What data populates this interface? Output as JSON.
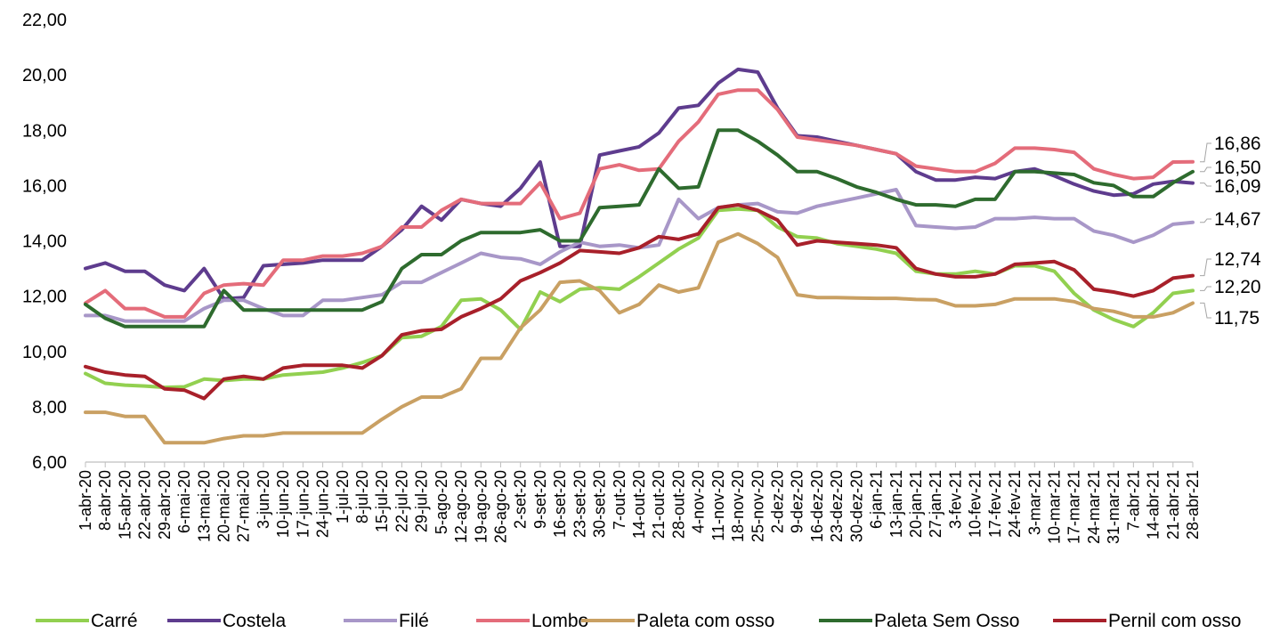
{
  "chart_data": {
    "type": "line",
    "title": "",
    "xlabel": "",
    "ylabel": "",
    "ylim": [
      6,
      22
    ],
    "yticks": [
      "6,00",
      "8,00",
      "10,00",
      "12,00",
      "14,00",
      "16,00",
      "18,00",
      "20,00",
      "22,00"
    ],
    "grid": false,
    "legend_position": "bottom",
    "x": [
      "1-abr-20",
      "8-abr-20",
      "15-abr-20",
      "22-abr-20",
      "29-abr-20",
      "6-mai-20",
      "13-mai-20",
      "20-mai-20",
      "27-mai-20",
      "3-jun-20",
      "10-jun-20",
      "17-jun-20",
      "24-jun-20",
      "1-jul-20",
      "8-jul-20",
      "15-jul-20",
      "22-jul-20",
      "29-jul-20",
      "5-ago-20",
      "12-ago-20",
      "19-ago-20",
      "26-ago-20",
      "2-set-20",
      "9-set-20",
      "16-set-20",
      "23-set-20",
      "30-set-20",
      "7-out-20",
      "14-out-20",
      "21-out-20",
      "28-out-20",
      "4-nov-20",
      "11-nov-20",
      "18-nov-20",
      "25-nov-20",
      "2-dez-20",
      "9-dez-20",
      "16-dez-20",
      "23-dez-20",
      "30-dez-20",
      "6-jan-21",
      "13-jan-21",
      "20-jan-21",
      "27-jan-21",
      "3-fev-21",
      "10-fev-21",
      "17-fev-21",
      "24-fev-21",
      "3-mar-21",
      "10-mar-21",
      "17-mar-21",
      "24-mar-21",
      "31-mar-21",
      "7-abr-21",
      "14-abr-21",
      "21-abr-21",
      "28-abr-21"
    ],
    "series": [
      {
        "name": "Carré",
        "color": "#92d050",
        "values": [
          9.2,
          8.85,
          8.78,
          8.75,
          8.7,
          8.72,
          9.0,
          8.95,
          9.0,
          9.0,
          9.15,
          9.2,
          9.25,
          9.4,
          9.6,
          9.85,
          10.5,
          10.55,
          10.9,
          11.85,
          11.9,
          11.5,
          10.8,
          12.15,
          11.8,
          12.25,
          12.3,
          12.25,
          12.7,
          13.2,
          13.7,
          14.1,
          15.1,
          15.15,
          15.1,
          14.5,
          14.15,
          14.1,
          13.9,
          13.8,
          13.7,
          13.55,
          12.9,
          12.8,
          12.8,
          12.9,
          12.8,
          13.1,
          13.1,
          12.9,
          12.1,
          11.5,
          11.15,
          10.9,
          11.4,
          12.1,
          12.2
        ]
      },
      {
        "name": "Costela",
        "color": "#5e3c8e",
        "values": [
          13.0,
          13.2,
          12.9,
          12.9,
          12.4,
          12.2,
          13.0,
          11.9,
          11.95,
          13.1,
          13.15,
          13.2,
          13.3,
          13.3,
          13.3,
          13.8,
          14.4,
          15.25,
          14.75,
          15.5,
          15.35,
          15.25,
          15.9,
          16.85,
          13.8,
          13.8,
          17.1,
          17.25,
          17.4,
          17.9,
          18.8,
          18.9,
          19.7,
          20.2,
          20.1,
          18.8,
          17.8,
          17.75,
          17.6,
          17.45,
          17.3,
          17.15,
          16.5,
          16.2,
          16.2,
          16.3,
          16.25,
          16.5,
          16.6,
          16.35,
          16.05,
          15.8,
          15.65,
          15.7,
          16.05,
          16.15,
          16.09
        ]
      },
      {
        "name": "Filé",
        "color": "#a897c8",
        "values": [
          11.3,
          11.3,
          11.1,
          11.1,
          11.1,
          11.1,
          11.55,
          11.85,
          11.85,
          11.55,
          11.3,
          11.3,
          11.85,
          11.85,
          11.95,
          12.05,
          12.5,
          12.5,
          12.85,
          13.2,
          13.55,
          13.4,
          13.35,
          13.15,
          13.6,
          13.95,
          13.8,
          13.85,
          13.75,
          13.85,
          15.5,
          14.8,
          15.2,
          15.3,
          15.35,
          15.05,
          15.0,
          15.25,
          15.4,
          15.55,
          15.7,
          15.85,
          14.55,
          14.5,
          14.45,
          14.5,
          14.8,
          14.8,
          14.85,
          14.8,
          14.8,
          14.35,
          14.2,
          13.95,
          14.2,
          14.6,
          14.67
        ]
      },
      {
        "name": "Lombo",
        "color": "#e46c7a",
        "values": [
          11.75,
          12.2,
          11.55,
          11.55,
          11.25,
          11.25,
          12.1,
          12.4,
          12.45,
          12.4,
          13.3,
          13.3,
          13.45,
          13.45,
          13.55,
          13.8,
          14.5,
          14.5,
          15.1,
          15.5,
          15.35,
          15.35,
          15.35,
          16.1,
          14.8,
          15.0,
          16.6,
          16.75,
          16.55,
          16.6,
          17.6,
          18.3,
          19.3,
          19.45,
          19.45,
          18.75,
          17.75,
          17.65,
          17.55,
          17.45,
          17.3,
          17.15,
          16.7,
          16.6,
          16.5,
          16.5,
          16.8,
          17.35,
          17.35,
          17.3,
          17.2,
          16.6,
          16.4,
          16.25,
          16.3,
          16.85,
          16.86
        ]
      },
      {
        "name": "Paleta com osso",
        "color": "#c9a063",
        "values": [
          7.8,
          7.8,
          7.65,
          7.65,
          6.7,
          6.7,
          6.7,
          6.85,
          6.95,
          6.95,
          7.05,
          7.05,
          7.05,
          7.05,
          7.05,
          7.55,
          8.0,
          8.35,
          8.35,
          8.65,
          9.75,
          9.75,
          10.85,
          11.5,
          12.5,
          12.55,
          12.2,
          11.4,
          11.7,
          12.4,
          12.15,
          12.3,
          13.95,
          14.25,
          13.9,
          13.4,
          12.05,
          11.95,
          11.95,
          11.93,
          11.92,
          11.92,
          11.88,
          11.87,
          11.65,
          11.65,
          11.7,
          11.9,
          11.9,
          11.9,
          11.8,
          11.55,
          11.45,
          11.25,
          11.25,
          11.4,
          11.75
        ]
      },
      {
        "name": "Paleta Sem Osso",
        "color": "#2e6b2e",
        "values": [
          11.7,
          11.2,
          10.9,
          10.9,
          10.9,
          10.9,
          10.9,
          12.2,
          11.5,
          11.5,
          11.5,
          11.5,
          11.5,
          11.5,
          11.5,
          11.8,
          13.0,
          13.5,
          13.5,
          14.0,
          14.3,
          14.3,
          14.3,
          14.4,
          14.0,
          14.0,
          15.2,
          15.25,
          15.3,
          16.6,
          15.9,
          15.95,
          18.0,
          18.0,
          17.6,
          17.1,
          16.5,
          16.5,
          16.25,
          15.95,
          15.75,
          15.5,
          15.3,
          15.3,
          15.25,
          15.5,
          15.5,
          16.5,
          16.5,
          16.45,
          16.4,
          16.1,
          16.0,
          15.6,
          15.6,
          16.1,
          16.5
        ]
      },
      {
        "name": "Pernil com osso",
        "color": "#a8202a",
        "values": [
          9.45,
          9.25,
          9.15,
          9.1,
          8.65,
          8.6,
          8.3,
          9.0,
          9.1,
          9.0,
          9.4,
          9.5,
          9.5,
          9.5,
          9.4,
          9.85,
          10.6,
          10.75,
          10.8,
          11.25,
          11.55,
          11.9,
          12.55,
          12.85,
          13.2,
          13.65,
          13.6,
          13.55,
          13.75,
          14.15,
          14.05,
          14.25,
          15.2,
          15.3,
          15.1,
          14.75,
          13.85,
          14.0,
          13.95,
          13.9,
          13.85,
          13.75,
          13.0,
          12.8,
          12.7,
          12.7,
          12.8,
          13.15,
          13.2,
          13.25,
          12.95,
          12.25,
          12.15,
          12.0,
          12.2,
          12.65,
          12.74
        ]
      }
    ],
    "end_labels": [
      {
        "text": "16,86",
        "value": 16.86
      },
      {
        "text": "16,50",
        "value": 16.5
      },
      {
        "text": "16,09",
        "value": 16.09
      },
      {
        "text": "14,67",
        "value": 14.67
      },
      {
        "text": "12,74",
        "value": 12.74
      },
      {
        "text": "12,20",
        "value": 12.2
      },
      {
        "text": "11,75",
        "value": 11.75
      }
    ]
  }
}
